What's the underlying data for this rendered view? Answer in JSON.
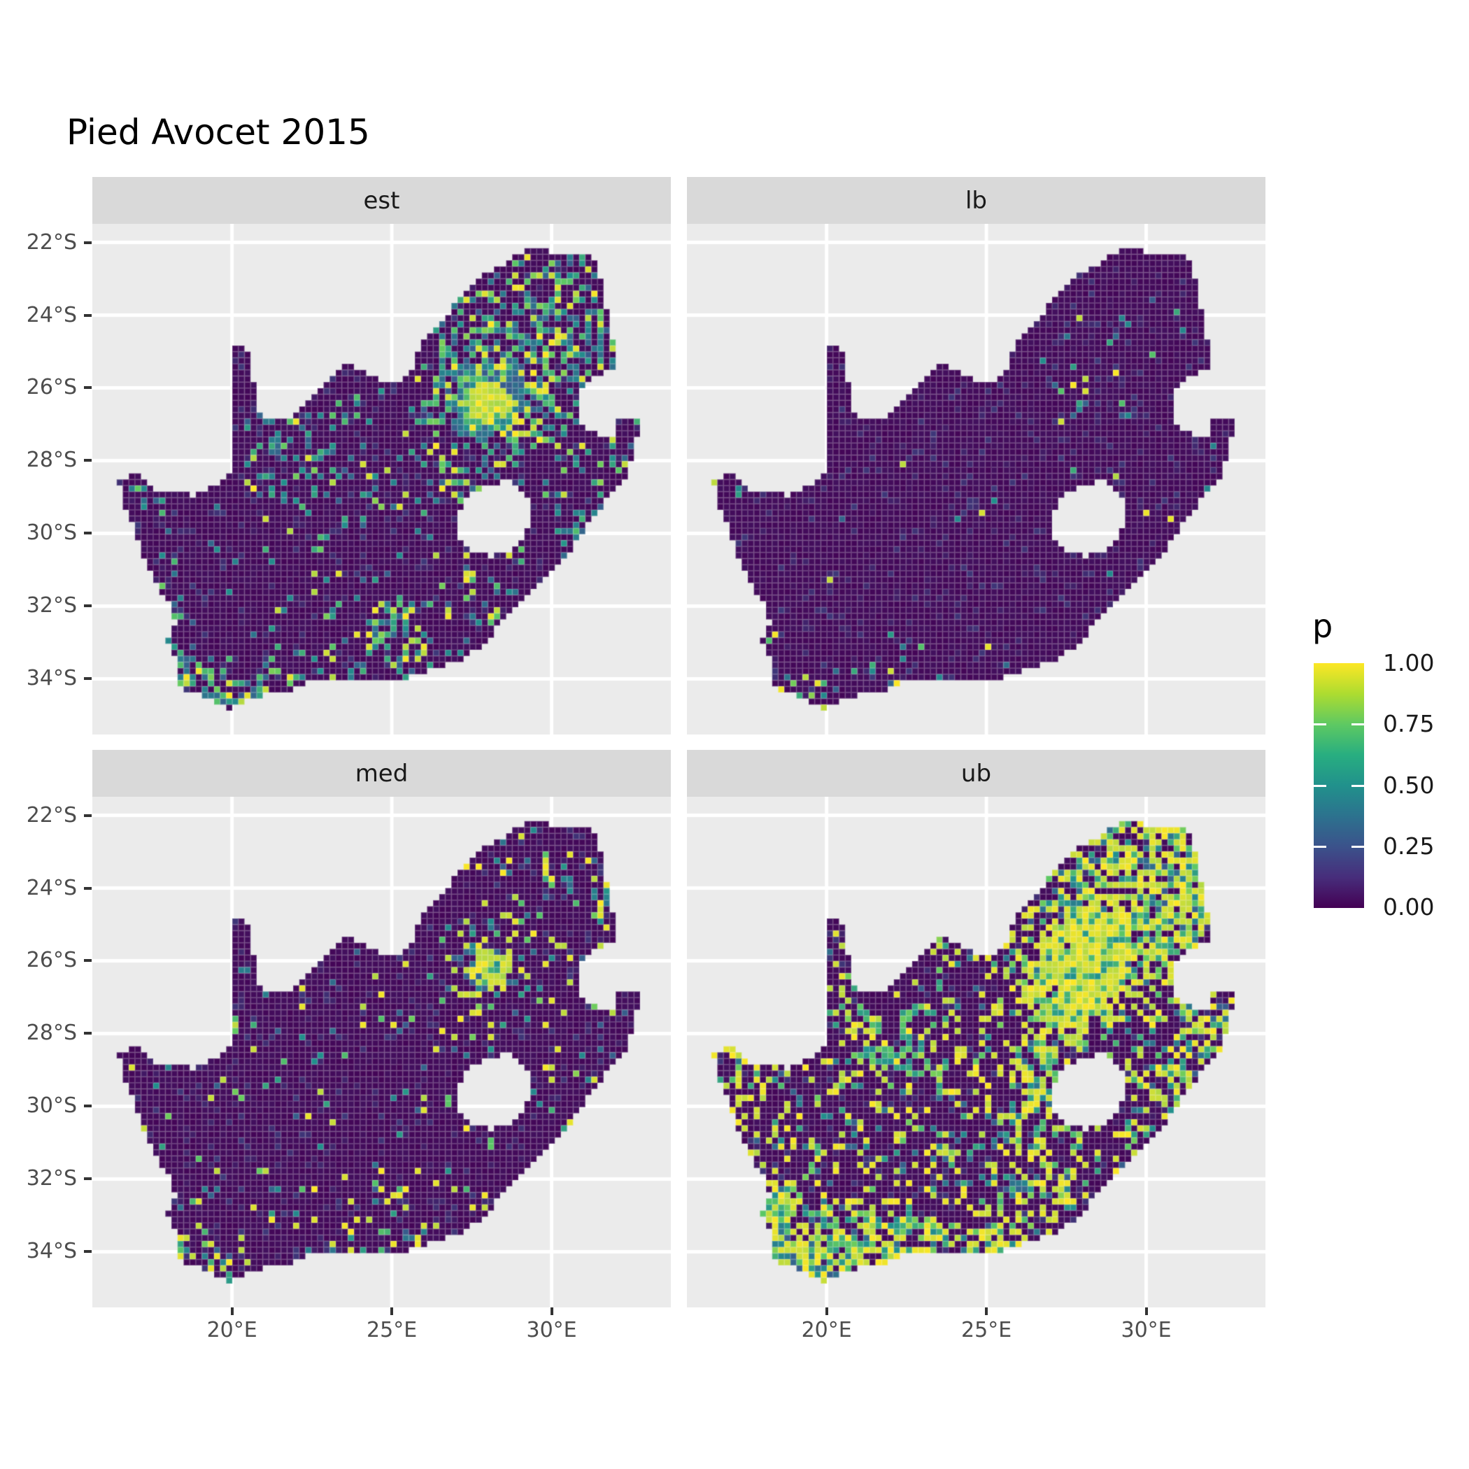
{
  "title": "Pied Avocet 2015",
  "facets": [
    {
      "id": "est",
      "label": "est"
    },
    {
      "id": "lb",
      "label": "lb"
    },
    {
      "id": "med",
      "label": "med"
    },
    {
      "id": "ub",
      "label": "ub"
    }
  ],
  "axes": {
    "x_tick_labels": [
      "20°E",
      "25°E",
      "30°E"
    ],
    "x_tick_values": [
      20,
      25,
      30
    ],
    "y_tick_labels": [
      "22°S",
      "24°S",
      "26°S",
      "28°S",
      "30°S",
      "32°S",
      "34°S"
    ],
    "y_tick_values": [
      -22,
      -24,
      -26,
      -28,
      -30,
      -32,
      -34
    ]
  },
  "legend": {
    "title": "p",
    "labels": [
      "1.00",
      "0.75",
      "0.50",
      "0.25",
      "0.00"
    ],
    "values": [
      1.0,
      0.75,
      0.5,
      0.25,
      0.0
    ]
  },
  "colors": {
    "page_bg": "#FFFFFF",
    "panel_bg": "#EBEBEB",
    "strip_bg": "#D9D9D9",
    "grid": "#FFFFFF",
    "axis_text": "#4D4D4D",
    "strip_text": "#1A1A1A",
    "title_text": "#000000",
    "tick_mark": "#333333",
    "viridis_stops": [
      "#440154",
      "#3B528B",
      "#21918C",
      "#5EC962",
      "#FDE725"
    ]
  },
  "chart_data": {
    "type": "heatmap",
    "subtype": "faceted-raster-map",
    "title": "Pied Avocet 2015",
    "facet_variable_levels": [
      "est",
      "lb",
      "med",
      "ub"
    ],
    "fill_variable": "p",
    "fill_range": [
      0.0,
      1.0
    ],
    "legend_position": "right",
    "grid": true,
    "lon_range_shown": [
      15.63,
      33.73
    ],
    "lat_range_shown": [
      -35.53,
      -21.49
    ],
    "x_ticks_deg_east": [
      20,
      25,
      30
    ],
    "y_ticks_deg_south": [
      22,
      24,
      26,
      28,
      30,
      32,
      34
    ],
    "region": "South Africa",
    "map": {
      "outline": [
        [
          16.45,
          -28.6
        ],
        [
          17.05,
          -28.32
        ],
        [
          17.42,
          -28.72
        ],
        [
          18.1,
          -28.88
        ],
        [
          18.9,
          -28.96
        ],
        [
          19.45,
          -28.72
        ],
        [
          19.99,
          -28.32
        ],
        [
          19.99,
          -27.2
        ],
        [
          19.99,
          -25.8
        ],
        [
          19.99,
          -24.8
        ],
        [
          20.4,
          -24.82
        ],
        [
          20.58,
          -25.3
        ],
        [
          20.7,
          -25.95
        ],
        [
          20.82,
          -26.5
        ],
        [
          20.9,
          -26.86
        ],
        [
          21.7,
          -26.86
        ],
        [
          22.25,
          -26.4
        ],
        [
          22.9,
          -25.9
        ],
        [
          23.5,
          -25.3
        ],
        [
          24.2,
          -25.62
        ],
        [
          24.78,
          -25.82
        ],
        [
          25.4,
          -25.74
        ],
        [
          25.62,
          -25.46
        ],
        [
          25.92,
          -24.75
        ],
        [
          26.45,
          -24.28
        ],
        [
          27.1,
          -23.55
        ],
        [
          27.95,
          -22.88
        ],
        [
          28.95,
          -22.32
        ],
        [
          29.45,
          -22.14
        ],
        [
          30.3,
          -22.3
        ],
        [
          31.3,
          -22.34
        ],
        [
          31.56,
          -23.1
        ],
        [
          31.7,
          -23.7
        ],
        [
          31.86,
          -24.4
        ],
        [
          31.98,
          -25.1
        ],
        [
          31.95,
          -25.45
        ],
        [
          31.4,
          -25.72
        ],
        [
          30.95,
          -25.98
        ],
        [
          30.8,
          -26.3
        ],
        [
          30.78,
          -26.8
        ],
        [
          31.1,
          -27.2
        ],
        [
          31.6,
          -27.33
        ],
        [
          31.97,
          -27.31
        ],
        [
          32.13,
          -26.84
        ],
        [
          32.89,
          -26.86
        ],
        [
          32.58,
          -27.5
        ],
        [
          32.4,
          -28.3
        ],
        [
          32.05,
          -28.75
        ],
        [
          31.4,
          -29.4
        ],
        [
          31.05,
          -29.88
        ],
        [
          30.6,
          -30.45
        ],
        [
          30.0,
          -31.0
        ],
        [
          29.3,
          -31.7
        ],
        [
          28.55,
          -32.3
        ],
        [
          27.9,
          -33.03
        ],
        [
          27.05,
          -33.53
        ],
        [
          26.2,
          -33.75
        ],
        [
          25.65,
          -33.95
        ],
        [
          25.0,
          -33.97
        ],
        [
          24.2,
          -34.1
        ],
        [
          23.35,
          -34.08
        ],
        [
          22.55,
          -34.05
        ],
        [
          21.7,
          -34.4
        ],
        [
          20.8,
          -34.47
        ],
        [
          20.0,
          -34.82
        ],
        [
          19.35,
          -34.62
        ],
        [
          18.85,
          -34.4
        ],
        [
          18.45,
          -34.32
        ],
        [
          18.3,
          -34.05
        ],
        [
          18.3,
          -33.48
        ],
        [
          17.95,
          -32.85
        ],
        [
          18.25,
          -32.55
        ],
        [
          18.0,
          -31.9
        ],
        [
          17.35,
          -30.9
        ],
        [
          16.95,
          -29.85
        ],
        [
          16.55,
          -29.05
        ]
      ],
      "lesotho_hole": [
        [
          27.02,
          -29.6
        ],
        [
          27.38,
          -28.95
        ],
        [
          28.05,
          -28.62
        ],
        [
          28.68,
          -28.58
        ],
        [
          29.15,
          -28.9
        ],
        [
          29.45,
          -29.3
        ],
        [
          29.28,
          -29.9
        ],
        [
          28.8,
          -30.4
        ],
        [
          28.08,
          -30.66
        ],
        [
          27.42,
          -30.42
        ],
        [
          27.05,
          -30.08
        ]
      ]
    },
    "facet_render": [
      {
        "id": "est",
        "seed": 11,
        "base": 0.055,
        "value_mix": [
          0.18,
          0.55
        ],
        "hotspots": [
          {
            "lon": 28.05,
            "lat": -26.35,
            "r": 0.55,
            "d": 1.3,
            "hi": 1
          },
          {
            "lon": 28.0,
            "lat": -26.3,
            "r": 1.3,
            "d": 0.75
          },
          {
            "lon": 28.2,
            "lat": -25.6,
            "r": 2.3,
            "d": 0.3
          },
          {
            "lon": 29.8,
            "lat": -23.6,
            "r": 1.8,
            "d": 0.3
          },
          {
            "lon": 31.8,
            "lat": -24.6,
            "r": 1.2,
            "d": 0.35
          },
          {
            "lon": 32.0,
            "lat": -28.4,
            "r": 0.9,
            "d": 0.28
          },
          {
            "lon": 30.9,
            "lat": -30.1,
            "r": 0.7,
            "d": 0.28
          },
          {
            "lon": 18.7,
            "lat": -33.7,
            "r": 0.6,
            "d": 0.6
          },
          {
            "lon": 19.6,
            "lat": -34.5,
            "r": 0.7,
            "d": 0.55
          },
          {
            "lon": 21.0,
            "lat": -34.3,
            "r": 0.8,
            "d": 0.4
          },
          {
            "lon": 23.3,
            "lat": -34.0,
            "r": 0.8,
            "d": 0.45
          },
          {
            "lon": 25.6,
            "lat": -33.9,
            "r": 0.6,
            "d": 0.5
          },
          {
            "lon": 24.9,
            "lat": -32.5,
            "r": 0.7,
            "d": 0.5
          },
          {
            "lon": 27.6,
            "lat": -31.8,
            "r": 0.6,
            "d": 0.3
          },
          {
            "lon": 26.5,
            "lat": -28.4,
            "r": 0.9,
            "d": 0.2
          },
          {
            "lon": 17.2,
            "lat": -28.9,
            "r": 0.5,
            "d": 0.3
          },
          {
            "lon": 22.0,
            "lat": -28.3,
            "r": 1.5,
            "d": 0.13
          }
        ],
        "paths": [
          {
            "pts": [
              [
                20.5,
                -27.0
              ],
              [
                21.2,
                -27.8
              ],
              [
                20.9,
                -28.6
              ],
              [
                21.8,
                -29.2
              ],
              [
                22.6,
                -28.8
              ],
              [
                23.2,
                -29.3
              ],
              [
                24.0,
                -29.6
              ]
            ],
            "w": 0.15,
            "d": 0.3,
            "low": 1
          },
          {
            "pts": [
              [
                21.0,
                -26.9
              ],
              [
                21.9,
                -27.4
              ],
              [
                22.8,
                -27.3
              ],
              [
                23.4,
                -27.8
              ],
              [
                24.3,
                -27.9
              ]
            ],
            "w": 0.15,
            "d": 0.25,
            "low": 1
          }
        ]
      },
      {
        "id": "lb",
        "seed": 22,
        "base": 0.006,
        "value_mix": [
          0.25,
          0.6
        ],
        "hotspots": [
          {
            "lon": 28.1,
            "lat": -26.3,
            "r": 0.9,
            "d": 0.12
          },
          {
            "lon": 29.8,
            "lat": -24.0,
            "r": 1.3,
            "d": 0.035
          },
          {
            "lon": 18.8,
            "lat": -33.8,
            "r": 0.5,
            "d": 0.15
          },
          {
            "lon": 19.8,
            "lat": -34.5,
            "r": 0.8,
            "d": 0.2
          },
          {
            "lon": 22.5,
            "lat": -34.1,
            "r": 0.9,
            "d": 0.12
          },
          {
            "lon": 25.6,
            "lat": -33.9,
            "r": 0.5,
            "d": 0.15
          },
          {
            "lon": 31.0,
            "lat": -29.8,
            "r": 0.7,
            "d": 0.05
          },
          {
            "lon": 16.9,
            "lat": -28.7,
            "r": 0.4,
            "d": 0.2
          }
        ],
        "paths": []
      },
      {
        "id": "med",
        "seed": 33,
        "base": 0.035,
        "value_mix": [
          0.45,
          0.7
        ],
        "hotspots": [
          {
            "lon": 28.1,
            "lat": -26.2,
            "r": 0.55,
            "d": 0.9,
            "hi": 1
          },
          {
            "lon": 28.1,
            "lat": -26.2,
            "r": 1.2,
            "d": 0.4
          },
          {
            "lon": 29.8,
            "lat": -23.8,
            "r": 1.7,
            "d": 0.13
          },
          {
            "lon": 31.9,
            "lat": -24.8,
            "r": 1.1,
            "d": 0.15
          },
          {
            "lon": 18.55,
            "lat": -33.5,
            "r": 0.55,
            "d": 0.5
          },
          {
            "lon": 19.6,
            "lat": -34.5,
            "r": 0.7,
            "d": 0.45
          },
          {
            "lon": 23.3,
            "lat": -34.05,
            "r": 0.7,
            "d": 0.3
          },
          {
            "lon": 25.7,
            "lat": -33.9,
            "r": 0.5,
            "d": 0.35
          },
          {
            "lon": 24.9,
            "lat": -32.4,
            "r": 0.6,
            "d": 0.3
          },
          {
            "lon": 31.3,
            "lat": -29.5,
            "r": 0.8,
            "d": 0.13
          },
          {
            "lon": 17.2,
            "lat": -28.8,
            "r": 0.4,
            "d": 0.25
          }
        ],
        "paths": []
      },
      {
        "id": "ub",
        "seed": 44,
        "base": 0.22,
        "value_mix": [
          0.62,
          0.85
        ],
        "hotspots": [
          {
            "lon": 28.05,
            "lat": -26.5,
            "r": 1.25,
            "d": 1.0,
            "hi": 1
          },
          {
            "lon": 28.4,
            "lat": -25.6,
            "r": 0.95,
            "d": 0.95,
            "hi": 1
          },
          {
            "lon": 27.1,
            "lat": -26.9,
            "r": 0.8,
            "d": 0.8,
            "hi": 1
          },
          {
            "lon": 29.0,
            "lat": -23.4,
            "r": 1.6,
            "d": 0.5
          },
          {
            "lon": 31.6,
            "lat": -23.6,
            "r": 1.4,
            "d": 0.55
          },
          {
            "lon": 31.0,
            "lat": -25.3,
            "r": 1.0,
            "d": 0.5
          },
          {
            "lon": 32.2,
            "lat": -27.8,
            "r": 1.0,
            "d": 0.5
          },
          {
            "lon": 30.8,
            "lat": -29.8,
            "r": 0.9,
            "d": 0.45
          },
          {
            "lon": 26.6,
            "lat": -28.9,
            "r": 0.9,
            "d": 0.4
          },
          {
            "lon": 27.3,
            "lat": -29.8,
            "r": 0.6,
            "d": 0.45
          },
          {
            "lon": 18.6,
            "lat": -33.8,
            "r": 0.8,
            "d": 0.8
          },
          {
            "lon": 19.6,
            "lat": -34.4,
            "r": 0.9,
            "d": 0.7
          },
          {
            "lon": 21.5,
            "lat": -34.2,
            "r": 0.9,
            "d": 0.5
          },
          {
            "lon": 23.4,
            "lat": -34.0,
            "r": 0.8,
            "d": 0.55
          },
          {
            "lon": 25.6,
            "lat": -33.8,
            "r": 0.7,
            "d": 0.55
          },
          {
            "lon": 26.5,
            "lat": -32.3,
            "r": 0.9,
            "d": 0.45
          },
          {
            "lon": 18.3,
            "lat": -32.6,
            "r": 0.6,
            "d": 0.6
          },
          {
            "lon": 17.4,
            "lat": -29.3,
            "r": 0.8,
            "d": 0.3
          }
        ],
        "paths": [
          {
            "pts": [
              [
                20.3,
                -27.4
              ],
              [
                21.1,
                -27.2
              ],
              [
                21.6,
                -27.9
              ],
              [
                21.2,
                -28.5
              ],
              [
                21.9,
                -28.9
              ],
              [
                22.6,
                -28.4
              ],
              [
                22.2,
                -27.7
              ],
              [
                22.9,
                -27.3
              ]
            ],
            "w": 0.17,
            "d": 0.8
          },
          {
            "pts": [
              [
                20.6,
                -28.8
              ],
              [
                21.4,
                -28.3
              ],
              [
                22.1,
                -28.8
              ],
              [
                22.9,
                -29.2
              ],
              [
                23.7,
                -28.9
              ]
            ],
            "w": 0.16,
            "d": 0.75
          },
          {
            "pts": [
              [
                19.5,
                -32.9
              ],
              [
                20.3,
                -33.3
              ],
              [
                21.2,
                -33.0
              ],
              [
                22.1,
                -33.4
              ],
              [
                22.9,
                -33.0
              ],
              [
                23.6,
                -33.4
              ]
            ],
            "w": 0.17,
            "d": 0.75
          },
          {
            "pts": [
              [
                19.9,
                -34.0
              ],
              [
                20.8,
                -33.7
              ],
              [
                21.7,
                -34.0
              ]
            ],
            "w": 0.15,
            "d": 0.6
          },
          {
            "pts": [
              [
                23.7,
                -32.2
              ],
              [
                24.6,
                -32.1
              ],
              [
                25.4,
                -31.9
              ],
              [
                26.3,
                -32.3
              ]
            ],
            "w": 0.14,
            "d": 0.6,
            "low": 1
          },
          {
            "pts": [
              [
                24.0,
                -30.8
              ],
              [
                24.9,
                -31.1
              ],
              [
                25.7,
                -30.8
              ]
            ],
            "w": 0.13,
            "d": 0.5,
            "low": 1
          },
          {
            "pts": [
              [
                26.9,
                -28.9
              ],
              [
                27.3,
                -29.6
              ],
              [
                27.7,
                -30.3
              ],
              [
                27.4,
                -30.9
              ]
            ],
            "w": 0.14,
            "d": 0.6
          }
        ]
      }
    ]
  }
}
